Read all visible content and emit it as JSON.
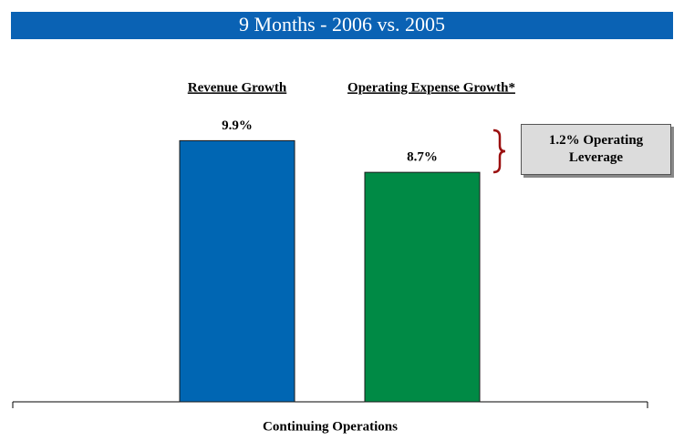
{
  "chart_data": {
    "type": "bar",
    "title": "9 Months - 2006 vs. 2005",
    "categories": [
      "Revenue Growth",
      "Operating Expense Growth*"
    ],
    "values": [
      9.9,
      8.7
    ],
    "value_labels": [
      "9.9%",
      "8.7%"
    ],
    "colors": [
      "#0066b3",
      "#008a45"
    ],
    "x_label": "Continuing Operations",
    "annotation": "1.2% Operating Leverage"
  }
}
